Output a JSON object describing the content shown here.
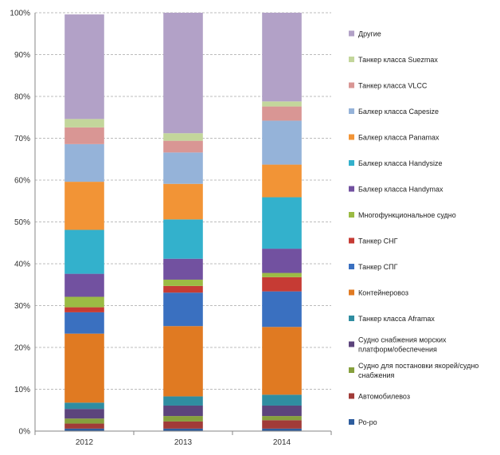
{
  "chart_data": {
    "type": "bar",
    "stacked": true,
    "normalized": true,
    "categories": [
      "2012",
      "2013",
      "2014"
    ],
    "y_ticks": [
      "0%",
      "10%",
      "20%",
      "30%",
      "40%",
      "50%",
      "60%",
      "70%",
      "80%",
      "90%",
      "100%"
    ],
    "ylim": [
      0,
      100
    ],
    "grid": "horizontal-dashed",
    "legend_position": "right",
    "series": [
      {
        "name": "Ро-ро",
        "color": "#2e5d9e",
        "values": [
          0.6,
          0.6,
          0.6
        ]
      },
      {
        "name": "Автомобилевоз",
        "color": "#a13b38",
        "values": [
          1.2,
          1.7,
          2.0
        ]
      },
      {
        "name": "Судно для постановки якорей/судно снабжения",
        "color": "#86a03d",
        "values": [
          1.2,
          1.3,
          1.0
        ]
      },
      {
        "name": "Судно снабжения морских платформ/обеспечения",
        "color": "#5c447c",
        "values": [
          2.3,
          2.5,
          2.5
        ]
      },
      {
        "name": "Танкер класса Aframax",
        "color": "#2f8da1",
        "values": [
          1.5,
          2.2,
          2.6
        ]
      },
      {
        "name": "Контейнеровоз",
        "color": "#e07a22",
        "values": [
          16.5,
          16.8,
          16.2
        ]
      },
      {
        "name": "Танкер СПГ",
        "color": "#3a70c0",
        "values": [
          5.1,
          8.0,
          8.5
        ]
      },
      {
        "name": "Танкер СНГ",
        "color": "#c63b34",
        "values": [
          1.2,
          1.6,
          3.4
        ]
      },
      {
        "name": "Многофункциональное судно",
        "color": "#9bbb44",
        "values": [
          2.5,
          1.5,
          1.0
        ]
      },
      {
        "name": "Балкер класса Handymax",
        "color": "#7251a0",
        "values": [
          5.5,
          5.0,
          5.8
        ]
      },
      {
        "name": "Балкер класса Handysize",
        "color": "#33b1cc",
        "values": [
          10.5,
          9.4,
          12.3
        ]
      },
      {
        "name": "Балкер класса Panamax",
        "color": "#f29436",
        "values": [
          11.5,
          8.5,
          7.8
        ]
      },
      {
        "name": "Балкер класса Capesize",
        "color": "#95b3d9",
        "values": [
          9.0,
          7.5,
          10.5
        ]
      },
      {
        "name": "Танкер класса VLCC",
        "color": "#d99694",
        "values": [
          4.0,
          2.8,
          3.4
        ]
      },
      {
        "name": "Танкер класса Suezmax",
        "color": "#c3d69b",
        "values": [
          2.0,
          1.8,
          1.2
        ]
      },
      {
        "name": "Другие",
        "color": "#b2a1c7",
        "values": [
          25.0,
          28.8,
          21.2
        ]
      }
    ],
    "legend_order": [
      "Другие",
      "Танкер класса Suezmax",
      "Танкер класса VLCC",
      "Балкер класса Capesize",
      "Балкер класса Panamax",
      "Балкер класса Handysize",
      "Балкер класса Handymax",
      "Многофункциональное судно",
      "Танкер СНГ",
      "Танкер СПГ",
      "Контейнеровоз",
      "Танкер класса Aframax",
      "Судно снабжения морских платформ/обеспечения",
      "Судно для постановки якорей/судно снабжения",
      "Автомобилевоз",
      "Ро-ро"
    ],
    "legend_wrapped": {
      "Судно снабжения морских платформ/обеспечения": [
        "Судно снабжения морских",
        "платформ/обеспечения"
      ],
      "Судно для постановки якорей/судно снабжения": [
        "Судно для постановки якорей/судно",
        "снабжения"
      ]
    }
  }
}
